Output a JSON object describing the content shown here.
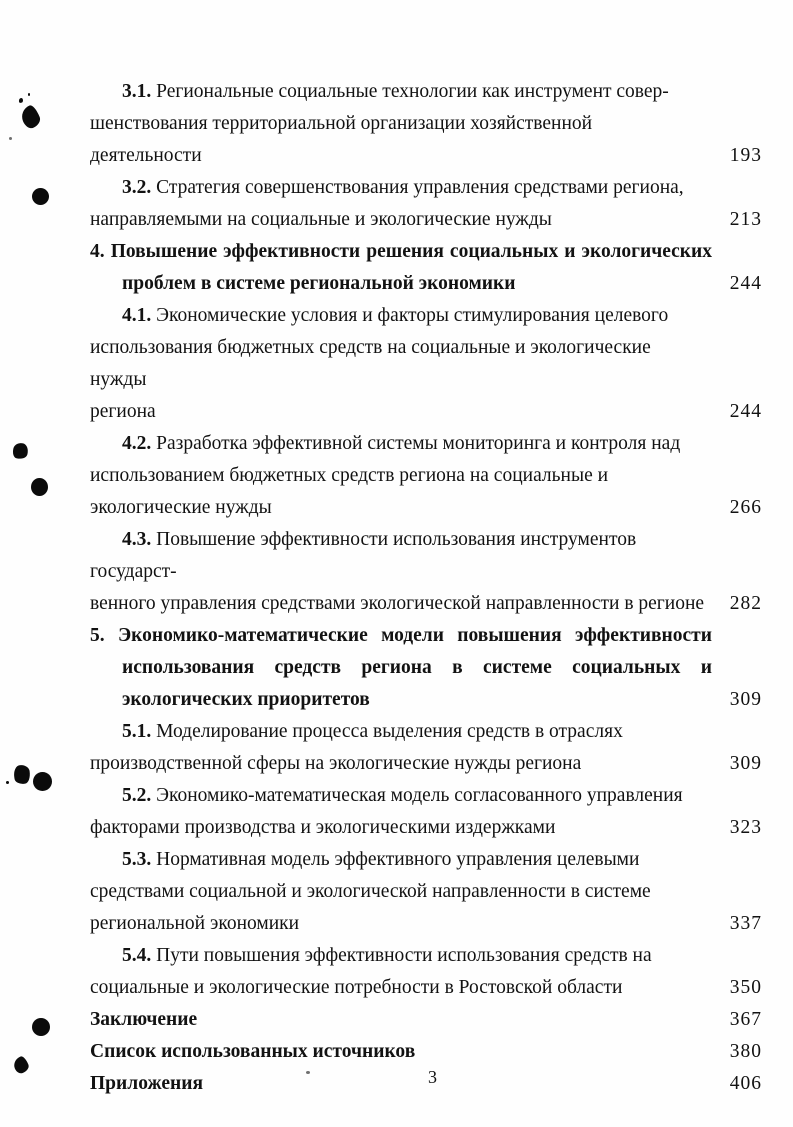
{
  "document": {
    "kind": "dissertation-table-of-contents",
    "language": "ru",
    "page_number": "3",
    "colors": {
      "paper": "#fefefe",
      "ink": "#121212"
    }
  },
  "toc": {
    "entries": [
      {
        "number": "3.1.",
        "type": "subsection",
        "lines": [
          "Региональные социальные технологии как инструмент совер-",
          "шенствования территориальной организации хозяйственной",
          "деятельности"
        ],
        "page": "193"
      },
      {
        "number": "3.2.",
        "type": "subsection",
        "lines": [
          "Стратегия совершенствования управления средствами региона,",
          "направляемыми на социальные и экологические нужды"
        ],
        "page": "213"
      },
      {
        "number": "4.",
        "type": "chapter",
        "lines": [
          "Повышение эффективности решения социальных и экологических",
          "проблем в системе региональной экономики"
        ],
        "page": "244"
      },
      {
        "number": "4.1.",
        "type": "subsection",
        "lines": [
          "Экономические условия и факторы стимулирования целевого",
          "использования бюджетных средств на социальные и экологические нужды",
          "региона"
        ],
        "page": "244"
      },
      {
        "number": "4.2.",
        "type": "subsection",
        "lines": [
          "Разработка эффективной системы мониторинга и контроля над",
          "использованием бюджетных средств региона на социальные и",
          "экологические нужды"
        ],
        "page": "266"
      },
      {
        "number": "4.3.",
        "type": "subsection",
        "lines": [
          "Повышение эффективности использования инструментов государст-",
          "венного управления средствами экологической направленности в регионе"
        ],
        "page": "282"
      },
      {
        "number": "5.",
        "type": "chapter",
        "lines": [
          "Экономико-математические модели повышения эффективности",
          "использования средств региона в системе социальных и",
          "экологических приоритетов"
        ],
        "page": "309"
      },
      {
        "number": "5.1.",
        "type": "subsection",
        "lines": [
          "Моделирование процесса выделения средств в отраслях",
          "производственной сферы на экологические нужды региона"
        ],
        "page": "309"
      },
      {
        "number": "5.2.",
        "type": "subsection",
        "lines": [
          "Экономико-математическая модель согласованного управления",
          "факторами производства и экологическими издержками"
        ],
        "page": "323"
      },
      {
        "number": "5.3.",
        "type": "subsection",
        "lines": [
          "Нормативная модель эффективного управления целевыми",
          "средствами социальной и экологической направленности в системе",
          "региональной экономики"
        ],
        "page": "337"
      },
      {
        "number": "5.4.",
        "type": "subsection",
        "lines": [
          "Пути повышения эффективности использования средств на",
          "социальные и экологические потребности в Ростовской области"
        ],
        "page": "350"
      },
      {
        "number": "",
        "type": "backmatter",
        "lines": [
          "Заключение"
        ],
        "page": "367"
      },
      {
        "number": "",
        "type": "backmatter",
        "lines": [
          "Список использованных источников"
        ],
        "page": "380"
      },
      {
        "number": "",
        "type": "backmatter",
        "lines": [
          "Приложения"
        ],
        "page": "406"
      }
    ]
  }
}
